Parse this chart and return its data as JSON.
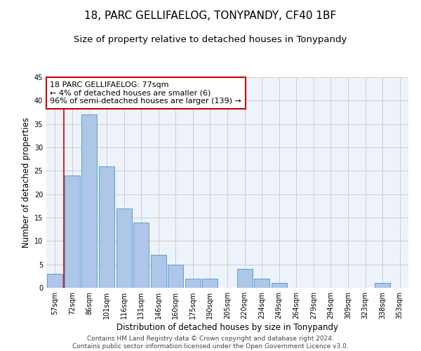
{
  "title": "18, PARC GELLIFAELOG, TONYPANDY, CF40 1BF",
  "subtitle": "Size of property relative to detached houses in Tonypandy",
  "xlabel": "Distribution of detached houses by size in Tonypandy",
  "ylabel": "Number of detached properties",
  "bar_color": "#aec6e8",
  "bar_edge_color": "#5a9fd4",
  "categories": [
    "57sqm",
    "72sqm",
    "86sqm",
    "101sqm",
    "116sqm",
    "131sqm",
    "146sqm",
    "160sqm",
    "175sqm",
    "190sqm",
    "205sqm",
    "220sqm",
    "234sqm",
    "249sqm",
    "264sqm",
    "279sqm",
    "294sqm",
    "309sqm",
    "323sqm",
    "338sqm",
    "353sqm"
  ],
  "values": [
    3,
    24,
    37,
    26,
    17,
    14,
    7,
    5,
    2,
    2,
    0,
    4,
    2,
    1,
    0,
    0,
    0,
    0,
    0,
    1,
    0
  ],
  "ylim": [
    0,
    45
  ],
  "yticks": [
    0,
    5,
    10,
    15,
    20,
    25,
    30,
    35,
    40,
    45
  ],
  "vline_x": 0.5,
  "vline_color": "#cc0000",
  "annotation_text": "18 PARC GELLIFAELOG: 77sqm\n← 4% of detached houses are smaller (6)\n96% of semi-detached houses are larger (139) →",
  "annotation_box_color": "#ffffff",
  "annotation_box_edge": "#cc0000",
  "footer": "Contains HM Land Registry data © Crown copyright and database right 2024.\nContains public sector information licensed under the Open Government Licence v3.0.",
  "grid_color": "#cccccc",
  "background_color": "#eef3fb",
  "title_fontsize": 11,
  "subtitle_fontsize": 9.5,
  "xlabel_fontsize": 8.5,
  "ylabel_fontsize": 8.5,
  "footer_fontsize": 6.5,
  "annotation_fontsize": 8,
  "tick_fontsize": 7
}
